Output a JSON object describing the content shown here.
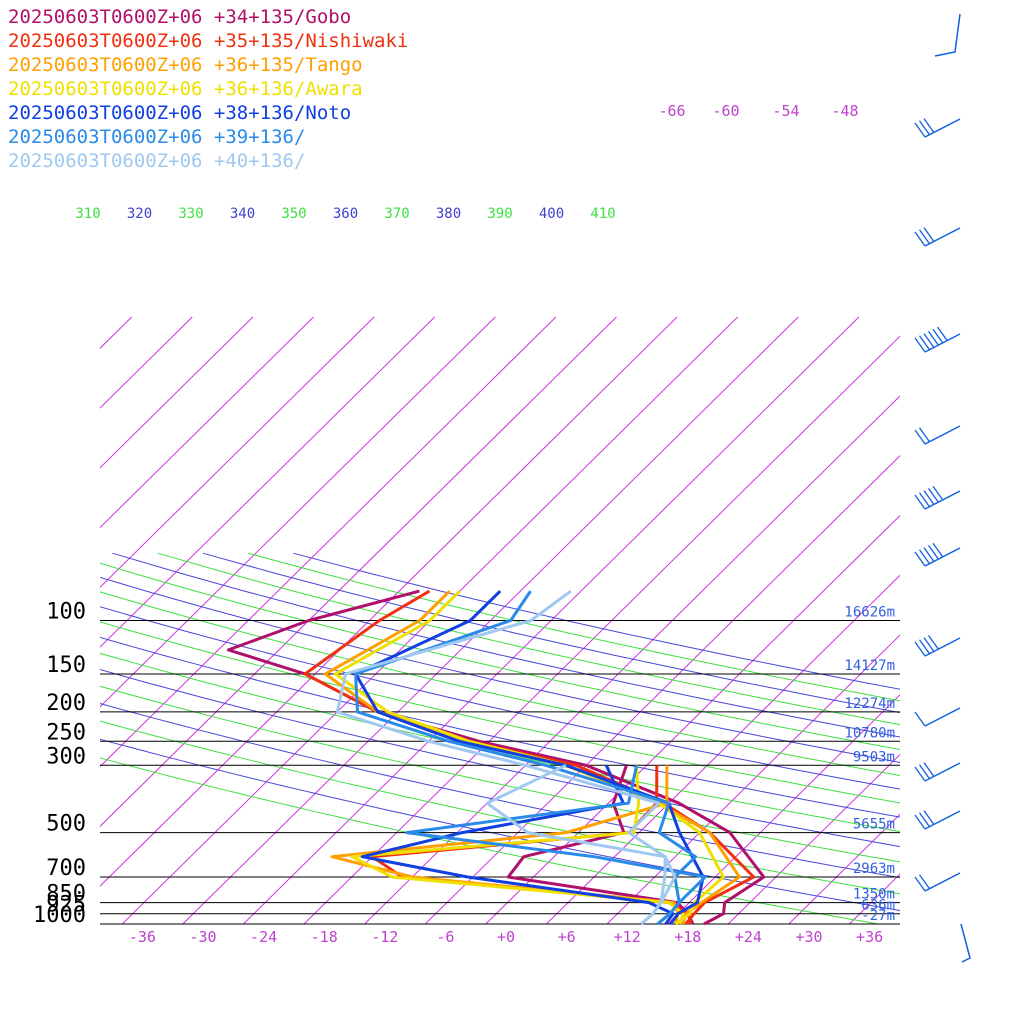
{
  "chart_data": {
    "type": "line",
    "subtype": "skew-T log-P sounding diagram",
    "pressure_levels": [
      100,
      150,
      200,
      250,
      300,
      500,
      700,
      850,
      925,
      1000
    ],
    "pressure_labels": [
      "100",
      "150",
      "200",
      "250",
      "300",
      "500",
      "700",
      "850",
      "925",
      "1000"
    ],
    "heights": [
      {
        "p": 100,
        "label": "16626m"
      },
      {
        "p": 150,
        "label": "14127m"
      },
      {
        "p": 200,
        "label": "12274m"
      },
      {
        "p": 250,
        "label": "10780m"
      },
      {
        "p": 300,
        "label": "9503m"
      },
      {
        "p": 500,
        "label": "5655m"
      },
      {
        "p": 700,
        "label": "2963m"
      },
      {
        "p": 850,
        "label": "1350m"
      },
      {
        "p": 925,
        "label": "636m"
      },
      {
        "p": 1000,
        "label": "-27m"
      }
    ],
    "temp_ticks": [
      "-36",
      "-30",
      "-24",
      "-18",
      "-12",
      "-6",
      "+0",
      "+6",
      "+12",
      "+18",
      "+24",
      "+30",
      "+36"
    ],
    "upper_temp_ticks": [
      "-66",
      "-60",
      "-54",
      "-48"
    ],
    "theta_labels": [
      {
        "value": "310",
        "color": "#40e040"
      },
      {
        "value": "320",
        "color": "#4040d0"
      },
      {
        "value": "330",
        "color": "#40e040"
      },
      {
        "value": "340",
        "color": "#4040d0"
      },
      {
        "value": "350",
        "color": "#40e040"
      },
      {
        "value": "360",
        "color": "#4040d0"
      },
      {
        "value": "370",
        "color": "#40e040"
      },
      {
        "value": "380",
        "color": "#4040d0"
      },
      {
        "value": "390",
        "color": "#40e040"
      },
      {
        "value": "400",
        "color": "#4040d0"
      },
      {
        "value": "410",
        "color": "#40e040"
      }
    ],
    "xlim": [
      -40,
      40
    ],
    "ylim": [
      1000,
      100
    ],
    "series": [
      {
        "name": "20250603T0600Z+06 +34+135/Gobo",
        "color": "#b0106a",
        "temp": [
          [
            1000,
            19.6
          ],
          [
            925,
            20.5
          ],
          [
            850,
            19.5
          ],
          [
            700,
            20.8
          ],
          [
            500,
            13
          ],
          [
            400,
            5
          ],
          [
            300,
            -8
          ],
          [
            250,
            -21
          ],
          [
            200,
            -34
          ],
          [
            150,
            -45
          ],
          [
            125,
            -55
          ],
          [
            100,
            -50
          ],
          [
            80,
            -42
          ]
        ],
        "dew": [
          [
            1000,
            18.5
          ],
          [
            925,
            17.0
          ],
          [
            850,
            14.8
          ],
          [
            700,
            -4.5
          ],
          [
            600,
            -5
          ],
          [
            500,
            2.5
          ],
          [
            400,
            -1.5
          ],
          [
            300,
            -4
          ]
        ]
      },
      {
        "name": "20250603T0600Z+06 +35+135/Nishiwaki",
        "color": "#f03010",
        "temp": [
          [
            1000,
            17.8
          ],
          [
            925,
            17.6
          ],
          [
            850,
            17.5
          ],
          [
            700,
            19.8
          ],
          [
            500,
            11
          ],
          [
            400,
            3.5
          ],
          [
            300,
            -9
          ],
          [
            250,
            -22
          ],
          [
            200,
            -34
          ],
          [
            150,
            -45
          ],
          [
            100,
            -43
          ],
          [
            80,
            -41
          ]
        ],
        "dew": [
          [
            1000,
            18.3
          ],
          [
            925,
            17.0
          ],
          [
            850,
            14.0
          ],
          [
            700,
            -15
          ],
          [
            600,
            -20
          ],
          [
            500,
            3.0
          ],
          [
            400,
            2.8
          ],
          [
            300,
            -1
          ]
        ]
      },
      {
        "name": "20250603T0600Z+06 +36+135/Tango",
        "color": "#ffa000",
        "temp": [
          [
            1000,
            17.5
          ],
          [
            925,
            16.8
          ],
          [
            850,
            17.2
          ],
          [
            700,
            18.4
          ],
          [
            500,
            11
          ],
          [
            400,
            3
          ],
          [
            300,
            -10
          ],
          [
            250,
            -22
          ],
          [
            200,
            -34
          ],
          [
            150,
            -43
          ],
          [
            100,
            -39
          ],
          [
            80,
            -39
          ]
        ],
        "dew": [
          [
            1000,
            16.8
          ],
          [
            925,
            16.0
          ],
          [
            850,
            14.5
          ],
          [
            700,
            -14
          ],
          [
            600,
            -24
          ],
          [
            500,
            -3.2
          ],
          [
            400,
            3.8
          ],
          [
            300,
            0
          ]
        ]
      },
      {
        "name": "20250603T0600Z+06 +36+136/Awara",
        "color": "#f0e000",
        "temp": [
          [
            1000,
            16.8
          ],
          [
            925,
            17.2
          ],
          [
            850,
            16.5
          ],
          [
            700,
            16.8
          ],
          [
            500,
            10
          ],
          [
            400,
            3
          ],
          [
            300,
            -10
          ],
          [
            250,
            -22
          ],
          [
            200,
            -33
          ],
          [
            150,
            -42
          ],
          [
            100,
            -38
          ],
          [
            80,
            -38
          ]
        ],
        "dew": [
          [
            1000,
            17.2
          ],
          [
            925,
            16.5
          ],
          [
            850,
            14.0
          ],
          [
            700,
            -16
          ],
          [
            600,
            -22
          ],
          [
            500,
            3.5
          ],
          [
            400,
            1
          ],
          [
            300,
            -3
          ]
        ]
      },
      {
        "name": "20250603T0600Z+06 +38+136/Noto",
        "color": "#1040e0",
        "temp": [
          [
            1000,
            16.3
          ],
          [
            925,
            16.0
          ],
          [
            850,
            16.8
          ],
          [
            700,
            14.8
          ],
          [
            500,
            8
          ],
          [
            400,
            4
          ],
          [
            300,
            -10
          ],
          [
            250,
            -23
          ],
          [
            200,
            -34
          ],
          [
            150,
            -40
          ],
          [
            100,
            -34
          ],
          [
            80,
            -34
          ]
        ],
        "dew": [
          [
            1000,
            15.8
          ],
          [
            925,
            15.5
          ],
          [
            850,
            12.0
          ],
          [
            700,
            -8.5
          ],
          [
            600,
            -21
          ],
          [
            500,
            -13.5
          ],
          [
            400,
            -0.5
          ],
          [
            300,
            -6
          ]
        ]
      },
      {
        "name": "20250603T0600Z+06 +39+136/",
        "color": "#2a8ae8",
        "temp": [
          [
            1000,
            15.0
          ],
          [
            925,
            15.2
          ],
          [
            850,
            15.0
          ],
          [
            700,
            12.0
          ],
          [
            600,
            12
          ],
          [
            500,
            6
          ],
          [
            400,
            4
          ],
          [
            300,
            -12
          ],
          [
            250,
            -24
          ],
          [
            200,
            -36
          ],
          [
            150,
            -40
          ],
          [
            100,
            -30
          ],
          [
            80,
            -31
          ]
        ],
        "dew": [
          [
            1000,
            15.0
          ],
          [
            925,
            15.2
          ],
          [
            850,
            15.0
          ],
          [
            700,
            15.0
          ],
          [
            600,
            2
          ],
          [
            500,
            -19
          ],
          [
            400,
            0
          ],
          [
            300,
            -3
          ]
        ]
      },
      {
        "name": "20250603T0600Z+06 +40+136/",
        "color": "#a0c8f0",
        "temp": [
          [
            1000,
            13.4
          ],
          [
            925,
            13.5
          ],
          [
            850,
            13.2
          ],
          [
            700,
            12
          ],
          [
            600,
            9
          ],
          [
            500,
            3
          ],
          [
            400,
            3
          ],
          [
            300,
            -14
          ],
          [
            250,
            -26
          ],
          [
            200,
            -38
          ],
          [
            150,
            -41
          ],
          [
            100,
            -28
          ],
          [
            80,
            -27
          ]
        ],
        "dew": [
          [
            1000,
            13.4
          ],
          [
            925,
            13.5
          ],
          [
            850,
            13.2
          ],
          [
            700,
            11
          ],
          [
            600,
            9
          ],
          [
            500,
            -7
          ],
          [
            400,
            -14
          ],
          [
            300,
            -10
          ]
        ]
      }
    ]
  },
  "barb_heights": [
    60,
    131,
    240,
    346,
    438,
    503,
    560,
    650,
    720,
    775,
    823,
    885,
    912
  ],
  "barb_color": "#1060e0"
}
